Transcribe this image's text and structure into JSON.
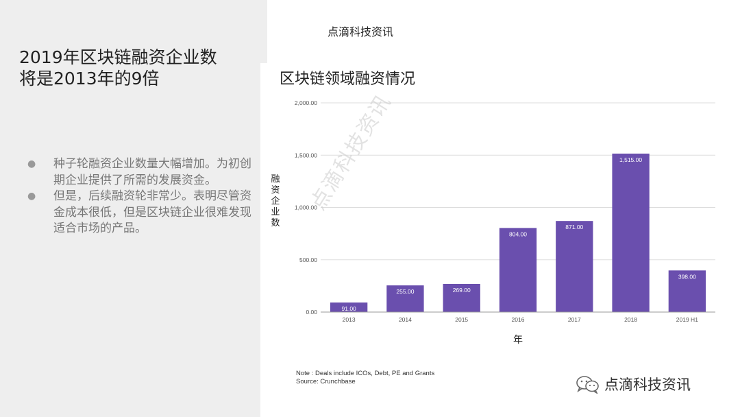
{
  "slide": {
    "title_line1": "2019年区块链融资企业数",
    "title_line2": "将是2013年的9倍",
    "bullets": [
      "种子轮融资企业数量大幅增加。为初创期企业提供了所需的发展资金。",
      "但是，后续融资轮非常少。表明尽管资金成本很低，但是区块链企业很难发现适合市场的产品。"
    ]
  },
  "brand_top": "点滴科技资讯",
  "watermark": "点滴科技资讯",
  "footer_brand": "点滴科技资讯",
  "note_line1": "Note : Deals include ICOs, Debt, PE and Grants",
  "note_line2": "Source:  Crunchbase",
  "colors": {
    "bar": "#6A4FAE",
    "grid": "#dddddd",
    "left_panel": "#eeeeee"
  },
  "chart_data": {
    "type": "bar",
    "title": "区块链领域融资情况",
    "xlabel": "年",
    "ylabel": "融资企业数",
    "categories": [
      "2013",
      "2014",
      "2015",
      "2016",
      "2017",
      "2018",
      "2019 H1"
    ],
    "values": [
      91,
      255,
      269,
      804,
      871,
      1515,
      398
    ],
    "value_labels": [
      "91.00",
      "255.00",
      "269.00",
      "804.00",
      "871.00",
      "1,515.00",
      "398.00"
    ],
    "yticks": [
      0,
      500,
      1000,
      1500,
      2000
    ],
    "ytick_labels": [
      "0.00",
      "500.00",
      "1,000.00",
      "1,500.00",
      "2,000.00"
    ],
    "ylim": [
      0,
      2000
    ],
    "grid": true,
    "legend": false
  }
}
